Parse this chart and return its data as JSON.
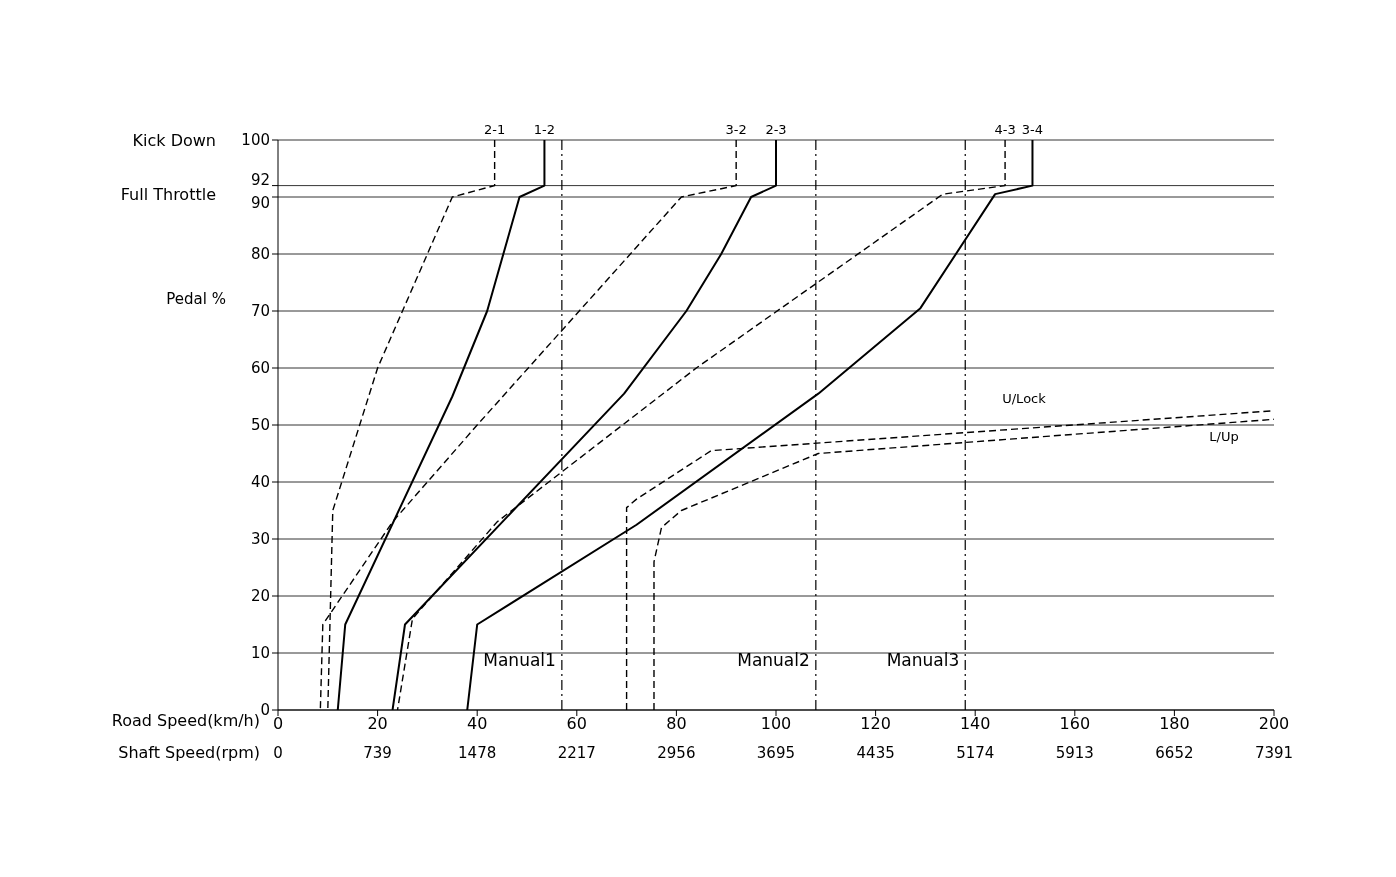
{
  "chart_data": {
    "type": "line",
    "xlabel": "Road Speed(km/h)",
    "ylabel": "Pedal %",
    "x2label": "Shaft Speed(rpm)",
    "xlim": [
      0,
      200
    ],
    "xticks": [
      0,
      20,
      40,
      60,
      80,
      100,
      120,
      140,
      160,
      180,
      200
    ],
    "x2lim": [
      0,
      7391
    ],
    "x2ticks": [
      0,
      739,
      1478,
      2217,
      2956,
      3695,
      4435,
      5174,
      5913,
      6652,
      7391
    ],
    "ylim": [
      0,
      100
    ],
    "yticks": [
      0,
      10,
      20,
      30,
      40,
      50,
      60,
      70,
      80,
      90,
      92,
      100
    ],
    "grid": true,
    "legend": false,
    "marker": "none",
    "annotations": [
      "Kick Down",
      "Full Throttle"
    ],
    "ref_lines": [
      {
        "axis": "x",
        "value": 57,
        "label": "Manual1",
        "color": "#000000",
        "line_style": "dashed"
      },
      {
        "axis": "x",
        "value": 108,
        "label": "Manual2",
        "color": "#000000",
        "line_style": "dashed"
      },
      {
        "axis": "x",
        "value": 138,
        "label": "Manual3",
        "color": "#000000",
        "line_style": "dashed"
      }
    ],
    "series": [
      {
        "name": "2-1",
        "color": "#000000",
        "line_style": "dashed",
        "x": [
          43.5,
          43.5,
          35,
          20,
          11,
          10
        ],
        "values": [
          100,
          92,
          90,
          60,
          35,
          0
        ]
      },
      {
        "name": "1-2",
        "color": "#000000",
        "line_style": "solid",
        "x": [
          53.5,
          53.5,
          48.5,
          42,
          35,
          13.5,
          12
        ],
        "values": [
          100,
          92,
          90,
          70,
          55,
          15,
          0
        ]
      },
      {
        "name": "3-2",
        "color": "#000000",
        "line_style": "dashed",
        "x": [
          92,
          92,
          81,
          40,
          23,
          9,
          8.5
        ],
        "values": [
          100,
          92,
          90,
          50,
          33,
          15,
          0
        ]
      },
      {
        "name": "2-3",
        "color": "#000000",
        "line_style": "solid",
        "x": [
          100,
          100,
          95,
          89,
          82,
          69.5,
          25.5,
          23
        ],
        "values": [
          100,
          92,
          90,
          80,
          70,
          55.5,
          15,
          0
        ]
      },
      {
        "name": "4-3",
        "color": "#000000",
        "line_style": "dashed",
        "x": [
          146,
          146,
          133.5,
          84,
          44,
          27,
          24
        ],
        "values": [
          100,
          92,
          90.5,
          60,
          33,
          16,
          0
        ]
      },
      {
        "name": "3-4",
        "color": "#000000",
        "line_style": "solid",
        "x": [
          151.5,
          151.5,
          144,
          129,
          108.5,
          72,
          40,
          38
        ],
        "values": [
          100,
          92,
          90.5,
          70.5,
          55.5,
          32.5,
          15,
          0
        ]
      },
      {
        "name": "U/Lock",
        "color": "#000000",
        "line_style": "dashed",
        "x": [
          70,
          70,
          72,
          87,
          200
        ],
        "values": [
          0,
          35.5,
          37,
          45.5,
          52.5
        ]
      },
      {
        "name": "L/Up",
        "color": "#000000",
        "line_style": "dashed",
        "x": [
          75.5,
          75.5,
          77,
          81,
          108.5,
          200
        ],
        "values": [
          0,
          26,
          32,
          35,
          45,
          51
        ]
      }
    ]
  }
}
